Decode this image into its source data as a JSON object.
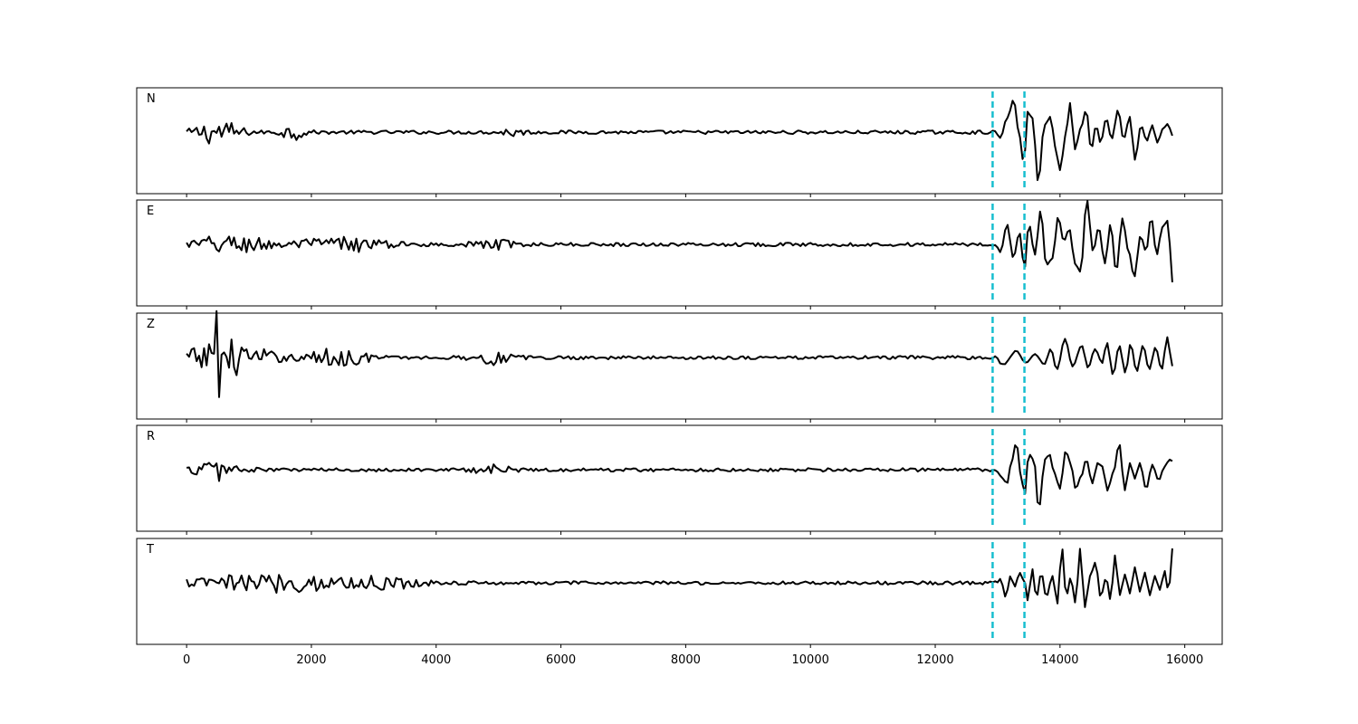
{
  "chart_data": {
    "type": "line",
    "title": "",
    "xlabel": "",
    "ylabel": "",
    "xlim": [
      -800,
      16600
    ],
    "grid": false,
    "legend": "none",
    "x_ticks": [
      0,
      2000,
      4000,
      6000,
      8000,
      10000,
      12000,
      14000,
      16000
    ],
    "x_tick_labels": [
      "0",
      "2000",
      "4000",
      "6000",
      "8000",
      "10000",
      "12000",
      "14000",
      "16000"
    ],
    "x_start": 0,
    "x_end": 15800,
    "sample_step": 40,
    "markers": [
      12920,
      13430
    ],
    "colors": {
      "trace": "#000000",
      "marker": "#17becf"
    },
    "panels": [
      {
        "name": "N",
        "bursts": [
          {
            "x": 500,
            "w": 350,
            "a": 0.35
          },
          {
            "x": 1700,
            "w": 200,
            "a": 0.2
          },
          {
            "x": 5200,
            "w": 200,
            "a": 0.12
          }
        ],
        "signal": [
          {
            "x": 13050,
            "v": -0.15
          },
          {
            "x": 13150,
            "v": 0.4
          },
          {
            "x": 13260,
            "v": 0.95
          },
          {
            "x": 13330,
            "v": 0.1
          },
          {
            "x": 13420,
            "v": -0.9
          },
          {
            "x": 13480,
            "v": 0.6
          },
          {
            "x": 13560,
            "v": 0.4
          },
          {
            "x": 13650,
            "v": -1.45
          },
          {
            "x": 13750,
            "v": 0.2
          },
          {
            "x": 13850,
            "v": 0.45
          },
          {
            "x": 13920,
            "v": -0.4
          },
          {
            "x": 14000,
            "v": -1.1
          },
          {
            "x": 14090,
            "v": -0.1
          },
          {
            "x": 14160,
            "v": 0.85
          },
          {
            "x": 14240,
            "v": -0.5
          },
          {
            "x": 14330,
            "v": 0.1
          },
          {
            "x": 14420,
            "v": 0.65
          },
          {
            "x": 14500,
            "v": -0.5
          },
          {
            "x": 14580,
            "v": 0.2
          },
          {
            "x": 14650,
            "v": -0.3
          },
          {
            "x": 14740,
            "v": 0.4
          },
          {
            "x": 14830,
            "v": -0.2
          },
          {
            "x": 14930,
            "v": 0.65
          },
          {
            "x": 15020,
            "v": -0.2
          },
          {
            "x": 15120,
            "v": 0.45
          },
          {
            "x": 15200,
            "v": -0.8
          },
          {
            "x": 15300,
            "v": 0.2
          },
          {
            "x": 15390,
            "v": -0.25
          },
          {
            "x": 15480,
            "v": 0.2
          },
          {
            "x": 15560,
            "v": -0.3
          },
          {
            "x": 15650,
            "v": 0.1
          },
          {
            "x": 15730,
            "v": 0.25
          },
          {
            "x": 15800,
            "v": -0.1
          }
        ]
      },
      {
        "name": "E",
        "bursts": [
          {
            "x": 700,
            "w": 700,
            "a": 0.25
          },
          {
            "x": 2500,
            "w": 700,
            "a": 0.2
          },
          {
            "x": 4900,
            "w": 300,
            "a": 0.15
          }
        ],
        "signal": [
          {
            "x": 13050,
            "v": -0.2
          },
          {
            "x": 13150,
            "v": 0.6
          },
          {
            "x": 13250,
            "v": -0.4
          },
          {
            "x": 13350,
            "v": 0.35
          },
          {
            "x": 13430,
            "v": -0.7
          },
          {
            "x": 13500,
            "v": 0.6
          },
          {
            "x": 13600,
            "v": -0.3
          },
          {
            "x": 13690,
            "v": 1.0
          },
          {
            "x": 13780,
            "v": -0.6
          },
          {
            "x": 13880,
            "v": -0.4
          },
          {
            "x": 13970,
            "v": 0.8
          },
          {
            "x": 14060,
            "v": 0.1
          },
          {
            "x": 14150,
            "v": 0.45
          },
          {
            "x": 14240,
            "v": -0.55
          },
          {
            "x": 14330,
            "v": -0.8
          },
          {
            "x": 14430,
            "v": 1.3
          },
          {
            "x": 14530,
            "v": -0.2
          },
          {
            "x": 14620,
            "v": 0.5
          },
          {
            "x": 14720,
            "v": -0.55
          },
          {
            "x": 14810,
            "v": 0.6
          },
          {
            "x": 14900,
            "v": -0.8
          },
          {
            "x": 15000,
            "v": 0.75
          },
          {
            "x": 15100,
            "v": -0.2
          },
          {
            "x": 15190,
            "v": -0.95
          },
          {
            "x": 15290,
            "v": 0.25
          },
          {
            "x": 15380,
            "v": -0.2
          },
          {
            "x": 15460,
            "v": 0.8
          },
          {
            "x": 15550,
            "v": -0.3
          },
          {
            "x": 15640,
            "v": 0.5
          },
          {
            "x": 15730,
            "v": 0.7
          },
          {
            "x": 15800,
            "v": -1.1
          }
        ]
      },
      {
        "name": "Z",
        "bursts": [
          {
            "x": 650,
            "w": 600,
            "a": 0.55
          },
          {
            "x": 2400,
            "w": 500,
            "a": 0.25
          },
          {
            "x": 4900,
            "w": 300,
            "a": 0.2
          }
        ],
        "spikes": [
          {
            "x": 470,
            "v": -0.9
          },
          {
            "x": 490,
            "v": 1.35
          },
          {
            "x": 510,
            "v": -1.15
          }
        ],
        "signal": [
          {
            "x": 13100,
            "v": -0.2
          },
          {
            "x": 13300,
            "v": 0.2
          },
          {
            "x": 13450,
            "v": -0.15
          },
          {
            "x": 13600,
            "v": 0.1
          },
          {
            "x": 13750,
            "v": -0.2
          },
          {
            "x": 13850,
            "v": 0.25
          },
          {
            "x": 13950,
            "v": -0.35
          },
          {
            "x": 14080,
            "v": 0.55
          },
          {
            "x": 14200,
            "v": -0.25
          },
          {
            "x": 14350,
            "v": 0.35
          },
          {
            "x": 14450,
            "v": -0.3
          },
          {
            "x": 14560,
            "v": 0.25
          },
          {
            "x": 14680,
            "v": -0.15
          },
          {
            "x": 14750,
            "v": 0.45
          },
          {
            "x": 14850,
            "v": -0.5
          },
          {
            "x": 14950,
            "v": 0.35
          },
          {
            "x": 15050,
            "v": -0.45
          },
          {
            "x": 15130,
            "v": 0.4
          },
          {
            "x": 15230,
            "v": -0.4
          },
          {
            "x": 15330,
            "v": 0.35
          },
          {
            "x": 15430,
            "v": -0.35
          },
          {
            "x": 15530,
            "v": 0.3
          },
          {
            "x": 15630,
            "v": -0.35
          },
          {
            "x": 15720,
            "v": 0.6
          },
          {
            "x": 15800,
            "v": -0.25
          }
        ]
      },
      {
        "name": "R",
        "bursts": [
          {
            "x": 500,
            "w": 350,
            "a": 0.3
          },
          {
            "x": 4900,
            "w": 250,
            "a": 0.2
          }
        ],
        "signal": [
          {
            "x": 13050,
            "v": -0.2
          },
          {
            "x": 13150,
            "v": -0.4
          },
          {
            "x": 13230,
            "v": 0.3
          },
          {
            "x": 13300,
            "v": 0.8
          },
          {
            "x": 13370,
            "v": -0.1
          },
          {
            "x": 13430,
            "v": -0.75
          },
          {
            "x": 13500,
            "v": 0.45
          },
          {
            "x": 13580,
            "v": 0.3
          },
          {
            "x": 13660,
            "v": -1.15
          },
          {
            "x": 13760,
            "v": 0.3
          },
          {
            "x": 13830,
            "v": 0.45
          },
          {
            "x": 13910,
            "v": -0.1
          },
          {
            "x": 14000,
            "v": -0.55
          },
          {
            "x": 14090,
            "v": 0.55
          },
          {
            "x": 14170,
            "v": 0.2
          },
          {
            "x": 14250,
            "v": -0.55
          },
          {
            "x": 14340,
            "v": -0.2
          },
          {
            "x": 14420,
            "v": 0.3
          },
          {
            "x": 14520,
            "v": -0.4
          },
          {
            "x": 14600,
            "v": 0.2
          },
          {
            "x": 14680,
            "v": 0.1
          },
          {
            "x": 14760,
            "v": -0.6
          },
          {
            "x": 14850,
            "v": -0.1
          },
          {
            "x": 14950,
            "v": 0.75
          },
          {
            "x": 15040,
            "v": -0.6
          },
          {
            "x": 15120,
            "v": 0.2
          },
          {
            "x": 15200,
            "v": -0.25
          },
          {
            "x": 15280,
            "v": 0.2
          },
          {
            "x": 15380,
            "v": -0.55
          },
          {
            "x": 15480,
            "v": 0.15
          },
          {
            "x": 15580,
            "v": -0.3
          },
          {
            "x": 15680,
            "v": 0.1
          },
          {
            "x": 15750,
            "v": 0.3
          },
          {
            "x": 15800,
            "v": 0.25
          }
        ]
      },
      {
        "name": "T",
        "bursts": [
          {
            "x": 1500,
            "w": 1400,
            "a": 0.25
          },
          {
            "x": 3200,
            "w": 500,
            "a": 0.12
          }
        ],
        "signal": [
          {
            "x": 13050,
            "v": 0.1
          },
          {
            "x": 13130,
            "v": -0.4
          },
          {
            "x": 13200,
            "v": 0.2
          },
          {
            "x": 13280,
            "v": -0.1
          },
          {
            "x": 13350,
            "v": 0.3
          },
          {
            "x": 13430,
            "v": 0.05
          },
          {
            "x": 13480,
            "v": -0.5
          },
          {
            "x": 13560,
            "v": 0.4
          },
          {
            "x": 13620,
            "v": -0.45
          },
          {
            "x": 13700,
            "v": 0.3
          },
          {
            "x": 13780,
            "v": -0.4
          },
          {
            "x": 13880,
            "v": 0.2
          },
          {
            "x": 13960,
            "v": -0.6
          },
          {
            "x": 14030,
            "v": 1.05
          },
          {
            "x": 14100,
            "v": -0.4
          },
          {
            "x": 14170,
            "v": 0.15
          },
          {
            "x": 14250,
            "v": -0.6
          },
          {
            "x": 14320,
            "v": 1.0
          },
          {
            "x": 14400,
            "v": -0.7
          },
          {
            "x": 14480,
            "v": 0.2
          },
          {
            "x": 14570,
            "v": 0.6
          },
          {
            "x": 14650,
            "v": -0.4
          },
          {
            "x": 14740,
            "v": 0.15
          },
          {
            "x": 14810,
            "v": -0.5
          },
          {
            "x": 14880,
            "v": 0.8
          },
          {
            "x": 14960,
            "v": -0.35
          },
          {
            "x": 15040,
            "v": 0.25
          },
          {
            "x": 15120,
            "v": -0.3
          },
          {
            "x": 15200,
            "v": 0.45
          },
          {
            "x": 15280,
            "v": -0.25
          },
          {
            "x": 15360,
            "v": 0.3
          },
          {
            "x": 15440,
            "v": -0.35
          },
          {
            "x": 15520,
            "v": 0.2
          },
          {
            "x": 15600,
            "v": -0.2
          },
          {
            "x": 15680,
            "v": 0.35
          },
          {
            "x": 15740,
            "v": -0.3
          },
          {
            "x": 15800,
            "v": 1.0
          }
        ]
      }
    ]
  }
}
